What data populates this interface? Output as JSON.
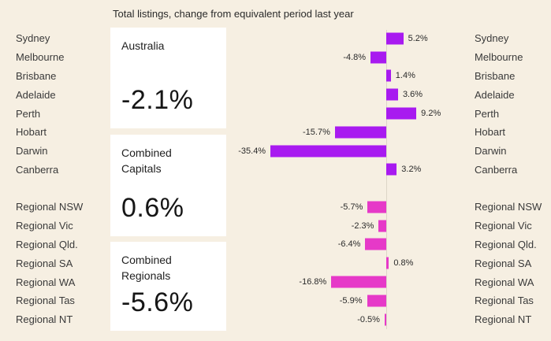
{
  "title": "Total listings, change from equivalent period last year",
  "cards": [
    {
      "label": "Australia",
      "value": "-2.1%"
    },
    {
      "label": "Combined Capitals",
      "value": "0.6%"
    },
    {
      "label": "Combined Regionals",
      "value": "-5.6%"
    }
  ],
  "colors": {
    "background": "#f6efe2",
    "card": "#ffffff",
    "axis": "#ddd6c8",
    "capital_bar": "#a81af0",
    "regional_bar": "#e639c8"
  },
  "chart_data": {
    "type": "bar",
    "orientation": "horizontal",
    "title": "Total listings, change from equivalent period last year",
    "categories": [
      "Sydney",
      "Melbourne",
      "Brisbane",
      "Adelaide",
      "Perth",
      "Hobart",
      "Darwin",
      "Canberra",
      "Regional NSW",
      "Regional Vic",
      "Regional Qld.",
      "Regional SA",
      "Regional WA",
      "Regional Tas",
      "Regional NT"
    ],
    "values": [
      5.2,
      -4.8,
      1.4,
      3.6,
      9.2,
      -15.7,
      -35.4,
      3.2,
      -5.7,
      -2.3,
      -6.4,
      0.8,
      -16.8,
      -5.9,
      -0.5
    ],
    "labels": [
      "5.2%",
      "-4.8%",
      "1.4%",
      "3.6%",
      "9.2%",
      "-15.7%",
      "-35.4%",
      "3.2%",
      "-5.7%",
      "-2.3%",
      "-6.4%",
      "0.8%",
      "-16.8%",
      "-5.9%",
      "-0.5%"
    ],
    "groups": [
      "capital",
      "capital",
      "capital",
      "capital",
      "capital",
      "capital",
      "capital",
      "capital",
      "regional",
      "regional",
      "regional",
      "regional",
      "regional",
      "regional",
      "regional"
    ],
    "xlim": [
      -40,
      12
    ],
    "grid": false,
    "legend": "none"
  }
}
